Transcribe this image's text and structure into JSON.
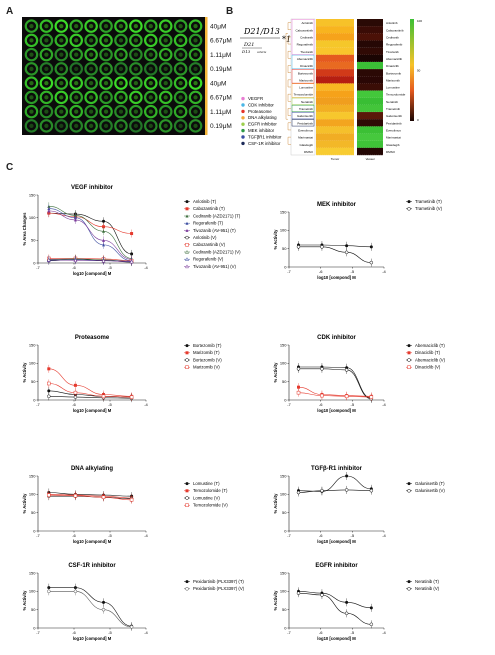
{
  "panels": {
    "a": "A",
    "b": "B",
    "c": "C"
  },
  "plate": {
    "concentrations": [
      "40μM",
      "6.67μM",
      "1.11μM",
      "0.19μM",
      "40μM",
      "6.67μM",
      "1.11μM",
      "0.19μM"
    ],
    "band_color": "#f5b63a"
  },
  "formula": {
    "top": "D21/D13",
    "inner_top": "D21",
    "inner_sub": "D13",
    "inner_sub2": "vehicle",
    "tail": "*100%"
  },
  "heatmap": {
    "row_labels": [
      "Anlotinib",
      "Cabozantinib",
      "Cediranib",
      "Regorafenib",
      "Tivozanib",
      "Abemaciclib",
      "Dinaciclib",
      "Bortezomib",
      "Marizomib",
      "Lomustine",
      "Temozolomide",
      "Neratinib",
      "Trametinib",
      "Galunisertib",
      "Pexidartinib",
      "Everolimus",
      "Marimastat",
      "Glasdegib",
      "DMSO"
    ],
    "right_labels": [
      "Anlotinib",
      "Cabozantinib",
      "Cediranib",
      "Regorafenib",
      "Tivozanib",
      "Abemaciclib",
      "Dinaciclib",
      "Bortezomib",
      "Marizomib",
      "Lomustine",
      "Temozolomide",
      "Neratinib",
      "Trametinib",
      "Galunisertib",
      "Pexidartinib",
      "Everolimus",
      "Marimastat",
      "Glasdegib",
      "DMSO"
    ],
    "col_labels": [
      "Tumor",
      "Vessel"
    ],
    "scale_ticks": [
      "100",
      "50",
      "0"
    ],
    "tumor_colors": [
      "#f7c229",
      "#f8b41f",
      "#f6a31b",
      "#f5c72a",
      "#f9c52c",
      "#e55a1f",
      "#e86a21",
      "#d13a19",
      "#b51f12",
      "#f8b822",
      "#f6a21a",
      "#f09e1e",
      "#f2af23",
      "#f7c72d",
      "#f3a51f",
      "#f5c02c",
      "#f1ad24",
      "#f3b828",
      "#f8cc32"
    ],
    "vessel_colors": [
      "#2a0a05",
      "#3a0c06",
      "#4b1107",
      "#260805",
      "#300a05",
      "#1a0503",
      "#3bbf36",
      "#2b0905",
      "#2a0705",
      "#3a0d06",
      "#43c73b",
      "#39be34",
      "#43c53a",
      "#5a1a0a",
      "#2f0a05",
      "#3cc035",
      "#46c83d",
      "#3fc238",
      "#240704"
    ]
  },
  "legend_b": {
    "items": [
      {
        "label": "VEGFR",
        "color": "#e87ed3"
      },
      {
        "label": "CDK inhibitor",
        "color": "#4ab6e6"
      },
      {
        "label": "Proteasome",
        "color": "#e5332a"
      },
      {
        "label": "DNA alkylating",
        "color": "#f3a83b"
      },
      {
        "label": "EGFR inhibitor",
        "color": "#9ccf4c"
      },
      {
        "label": "MEK inhibitor",
        "color": "#2f9a47"
      },
      {
        "label": "TGFβR1 inhibitor",
        "color": "#3b4fa3"
      },
      {
        "label": "CSF-1R inhibitor",
        "color": "#1c2a58"
      }
    ]
  },
  "chart_data": [
    {
      "type": "line",
      "title": "VEGF inhibitor",
      "xlabel": "log10 [compond] M",
      "ylabel": "% Area Changes",
      "xlim": [
        -7,
        -4
      ],
      "ylim": [
        0,
        150
      ],
      "xticks": [
        "-7",
        "-6",
        "-5",
        "-4"
      ],
      "yticks": [
        "0",
        "50",
        "100",
        "150"
      ],
      "x": [
        -6.7,
        -5.96,
        -5.18,
        -4.4
      ],
      "series": [
        {
          "name": "Anlotinib (T)",
          "values": [
            110,
            108,
            92,
            20
          ],
          "color": "#111",
          "marker": "dot"
        },
        {
          "name": "Cabozantinib (T)",
          "values": [
            110,
            102,
            80,
            65
          ],
          "color": "#e53a2e",
          "marker": "sq"
        },
        {
          "name": "Cediranib (AZD2171) (T)",
          "values": [
            125,
            105,
            70,
            10
          ],
          "color": "#3c6e3c",
          "marker": "tri"
        },
        {
          "name": "Regorafenib (T)",
          "values": [
            120,
            100,
            40,
            5
          ],
          "color": "#3d4fa1",
          "marker": "tri"
        },
        {
          "name": "Tivozanib (AV-951) (T)",
          "values": [
            115,
            95,
            50,
            8
          ],
          "color": "#7a3a9a",
          "marker": "tri"
        },
        {
          "name": "Anlotinib (V)",
          "values": [
            5,
            8,
            6,
            2
          ],
          "color": "#111",
          "marker": "odot"
        },
        {
          "name": "Cabozantinib (V)",
          "values": [
            10,
            10,
            9,
            5
          ],
          "color": "#e53a2e",
          "marker": "osq"
        },
        {
          "name": "Cediranib (AZD2171) (V)",
          "values": [
            8,
            9,
            7,
            3
          ],
          "color": "#3c6e3c",
          "marker": "otri"
        },
        {
          "name": "Regorafenib (V)",
          "values": [
            6,
            7,
            5,
            4
          ],
          "color": "#3d4fa1",
          "marker": "otri"
        },
        {
          "name": "Tivozanib (AV-951) (V)",
          "values": [
            7,
            6,
            5,
            3
          ],
          "color": "#7a3a9a",
          "marker": "otri"
        }
      ]
    },
    {
      "type": "line",
      "title": "MEK inhibitor",
      "xlabel": "log10 [compond] M",
      "ylabel": "% Activity",
      "xlim": [
        -7,
        -4
      ],
      "ylim": [
        0,
        150
      ],
      "xticks": [
        "-7",
        "-6",
        "-5",
        "-4"
      ],
      "yticks": [
        "0",
        "50",
        "100",
        "150"
      ],
      "x": [
        -6.7,
        -5.96,
        -5.18,
        -4.4
      ],
      "series": [
        {
          "name": "Trametinib (T)",
          "values": [
            60,
            60,
            58,
            55
          ],
          "color": "#111",
          "marker": "dot"
        },
        {
          "name": "Trametinib (V)",
          "values": [
            55,
            55,
            40,
            12
          ],
          "color": "#111",
          "marker": "odot"
        }
      ]
    },
    {
      "type": "line",
      "title": "Proteasome",
      "xlabel": "log10 [compond] M",
      "ylabel": "% Activity",
      "xlim": [
        -7,
        -4
      ],
      "ylim": [
        0,
        150
      ],
      "xticks": [
        "-7",
        "-6",
        "-5",
        "-4"
      ],
      "yticks": [
        "0",
        "50",
        "100",
        "150"
      ],
      "x": [
        -6.7,
        -5.96,
        -5.18,
        -4.4
      ],
      "series": [
        {
          "name": "Bortezomib (T)",
          "values": [
            25,
            15,
            10,
            8
          ],
          "color": "#111",
          "marker": "dot"
        },
        {
          "name": "Marizomib (T)",
          "values": [
            85,
            40,
            15,
            10
          ],
          "color": "#e53a2e",
          "marker": "sq"
        },
        {
          "name": "Bortezomib (V)",
          "values": [
            10,
            8,
            6,
            5
          ],
          "color": "#111",
          "marker": "odot"
        },
        {
          "name": "Marizomib (V)",
          "values": [
            45,
            20,
            10,
            8
          ],
          "color": "#e53a2e",
          "marker": "osq"
        }
      ]
    },
    {
      "type": "line",
      "title": "CDK inhibitor",
      "xlabel": "log10 [compond] M",
      "ylabel": "% Activity",
      "xlim": [
        -7,
        -4
      ],
      "ylim": [
        0,
        150
      ],
      "xticks": [
        "-7",
        "-6",
        "-5",
        "-4"
      ],
      "yticks": [
        "0",
        "50",
        "100",
        "150"
      ],
      "x": [
        -6.7,
        -5.96,
        -5.18,
        -4.4
      ],
      "series": [
        {
          "name": "Abemaciclib (T)",
          "values": [
            90,
            90,
            88,
            5
          ],
          "color": "#111",
          "marker": "dot"
        },
        {
          "name": "Dinaciclib (T)",
          "values": [
            35,
            15,
            12,
            10
          ],
          "color": "#e53a2e",
          "marker": "sq"
        },
        {
          "name": "Abemaciclib (V)",
          "values": [
            85,
            85,
            82,
            3
          ],
          "color": "#111",
          "marker": "odot"
        },
        {
          "name": "Dinaciclib (V)",
          "values": [
            20,
            12,
            10,
            8
          ],
          "color": "#e53a2e",
          "marker": "osq"
        }
      ]
    },
    {
      "type": "line",
      "title": "DNA alkylating",
      "xlabel": "log10 [compond] M",
      "ylabel": "% Activity",
      "xlim": [
        -7,
        -4
      ],
      "ylim": [
        0,
        150
      ],
      "xticks": [
        "-7",
        "-6",
        "-5",
        "-4"
      ],
      "yticks": [
        "0",
        "50",
        "100",
        "150"
      ],
      "x": [
        -6.7,
        -5.96,
        -5.18,
        -4.4
      ],
      "series": [
        {
          "name": "Lomustine (T)",
          "values": [
            105,
            100,
            98,
            95
          ],
          "color": "#111",
          "marker": "dot"
        },
        {
          "name": "Temozolomide (T)",
          "values": [
            100,
            98,
            95,
            90
          ],
          "color": "#e53a2e",
          "marker": "sq"
        },
        {
          "name": "Lomustine (V)",
          "values": [
            95,
            95,
            92,
            88
          ],
          "color": "#111",
          "marker": "odot"
        },
        {
          "name": "Temozolomide (V)",
          "values": [
            98,
            96,
            92,
            85
          ],
          "color": "#e53a2e",
          "marker": "osq"
        }
      ]
    },
    {
      "type": "line",
      "title": "TGFβ-R1 inhibitor",
      "xlabel": "log10 [compond] M",
      "ylabel": "% Activity",
      "xlim": [
        -7,
        -4
      ],
      "ylim": [
        0,
        150
      ],
      "xticks": [
        "-7",
        "-6",
        "-5",
        "-4"
      ],
      "yticks": [
        "0",
        "50",
        "100",
        "150"
      ],
      "x": [
        -6.7,
        -5.96,
        -5.18,
        -4.4
      ],
      "series": [
        {
          "name": "Galunisertib (T)",
          "values": [
            110,
            108,
            150,
            115
          ],
          "color": "#111",
          "marker": "dot"
        },
        {
          "name": "Galunisertib (V)",
          "values": [
            105,
            110,
            112,
            110
          ],
          "color": "#111",
          "marker": "odot"
        }
      ]
    },
    {
      "type": "line",
      "title": "CSF-1R inhibitor",
      "xlabel": "log10 [compond] M",
      "ylabel": "% Activity",
      "xlim": [
        -7,
        -4
      ],
      "ylim": [
        0,
        150
      ],
      "xticks": [
        "-7",
        "-6",
        "-5",
        "-4"
      ],
      "yticks": [
        "0",
        "50",
        "100",
        "150"
      ],
      "x": [
        -6.7,
        -5.96,
        -5.18,
        -4.4
      ],
      "series": [
        {
          "name": "Pexidartinib (PLX3397) (T)",
          "values": [
            110,
            110,
            70,
            5
          ],
          "color": "#111",
          "marker": "dot"
        },
        {
          "name": "Pexidartinib (PLX3397) (V)",
          "values": [
            100,
            100,
            50,
            3
          ],
          "color": "#555",
          "marker": "odot"
        }
      ]
    },
    {
      "type": "line",
      "title": "EGFR inhibitor",
      "xlabel": "log10 [compond] M",
      "ylabel": "% Activity",
      "xlim": [
        -7,
        -4
      ],
      "ylim": [
        0,
        150
      ],
      "xticks": [
        "-7",
        "-6",
        "-5",
        "-4"
      ],
      "yticks": [
        "0",
        "50",
        "100",
        "150"
      ],
      "x": [
        -6.7,
        -5.96,
        -5.18,
        -4.4
      ],
      "series": [
        {
          "name": "Neratinib (T)",
          "values": [
            100,
            95,
            70,
            55
          ],
          "color": "#111",
          "marker": "dot"
        },
        {
          "name": "Neratinib (V)",
          "values": [
            95,
            90,
            40,
            10
          ],
          "color": "#111",
          "marker": "odot"
        }
      ]
    }
  ]
}
